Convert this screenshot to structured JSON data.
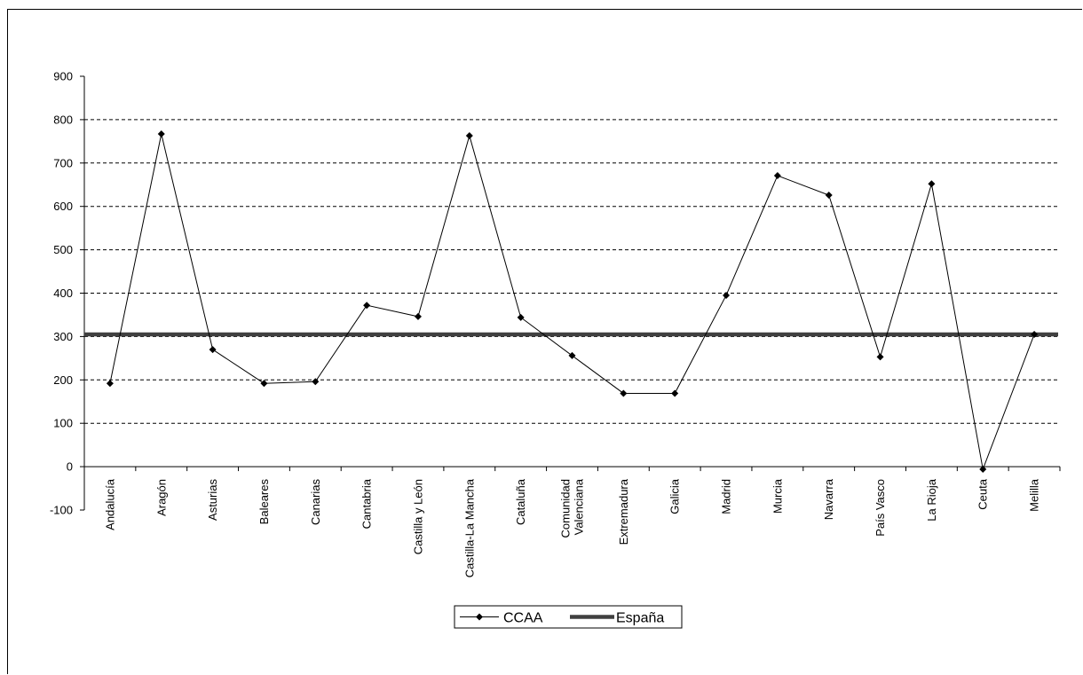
{
  "chart_data": {
    "type": "line",
    "categories": [
      "Andalucía",
      "Aragón",
      "Asturias",
      "Baleares",
      "Canarias",
      "Cantabria",
      "Castilla y León",
      "Castilla-La Mancha",
      "Cataluña",
      "Comunidad Valenciana",
      "Extremadura",
      "Galicia",
      "Madrid",
      "Murcia",
      "Navarra",
      "País Vasco",
      "La Rioja",
      "Ceuta",
      "Melilla"
    ],
    "category_lines": [
      [
        "Andalucía"
      ],
      [
        "Aragón"
      ],
      [
        "Asturias"
      ],
      [
        "Baleares"
      ],
      [
        "Canarias"
      ],
      [
        "Cantabria"
      ],
      [
        "Castilla y León"
      ],
      [
        "Castilla-La Mancha"
      ],
      [
        "Cataluña"
      ],
      [
        "Comunidad",
        "Valenciana"
      ],
      [
        "Extremadura"
      ],
      [
        "Galicia"
      ],
      [
        "Madrid"
      ],
      [
        "Murcia"
      ],
      [
        "Navarra"
      ],
      [
        "País Vasco"
      ],
      [
        "La Rioja"
      ],
      [
        "Ceuta"
      ],
      [
        "Melilla"
      ]
    ],
    "series": [
      {
        "name": "CCAA",
        "values": [
          192,
          767,
          270,
          192,
          196,
          372,
          346,
          763,
          344,
          256,
          169,
          169,
          395,
          671,
          626,
          253,
          652,
          -6,
          305
        ],
        "color": "#000000",
        "marker": "diamond"
      },
      {
        "name": "España",
        "values": [
          305,
          305,
          305,
          305,
          305,
          305,
          305,
          305,
          305,
          305,
          305,
          305,
          305,
          305,
          305,
          305,
          305,
          305,
          305
        ],
        "color": "#404040",
        "marker": "none"
      }
    ],
    "ylim": [
      -100,
      900
    ],
    "yticks": [
      -100,
      0,
      100,
      200,
      300,
      400,
      500,
      600,
      700,
      800,
      900
    ],
    "grid": "horizontal dashed",
    "legend_position": "bottom-center",
    "title": "",
    "xlabel": "",
    "ylabel": ""
  }
}
